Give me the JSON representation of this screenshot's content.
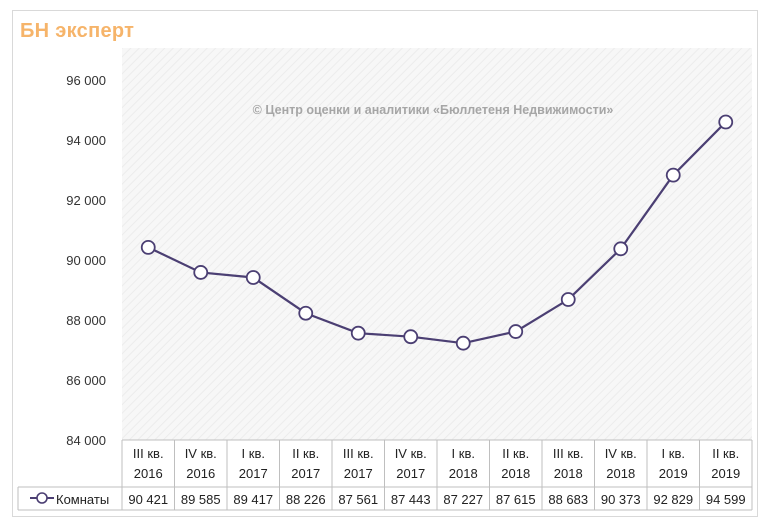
{
  "logo": "БН эксперт",
  "watermark": "© Центр оценки и аналитики «Бюллетеня Недвижимости»",
  "colors": {
    "series": "#4b3f73",
    "marker_fill": "#ffffff",
    "grid_bg": "#f4f4f4",
    "logo": "#f6b46a"
  },
  "chart_data": {
    "type": "line",
    "categories": [
      [
        "III кв.",
        "2016"
      ],
      [
        "IV кв.",
        "2016"
      ],
      [
        "I кв.",
        "2017"
      ],
      [
        "II кв.",
        "2017"
      ],
      [
        "III кв.",
        "2017"
      ],
      [
        "IV кв.",
        "2017"
      ],
      [
        "I кв.",
        "2018"
      ],
      [
        "II кв.",
        "2018"
      ],
      [
        "III кв.",
        "2018"
      ],
      [
        "IV кв.",
        "2018"
      ],
      [
        "I кв.",
        "2019"
      ],
      [
        "II кв.",
        "2019"
      ]
    ],
    "series": [
      {
        "name": "Комнаты",
        "values": [
          90421,
          89585,
          89417,
          88226,
          87561,
          87443,
          87227,
          87615,
          88683,
          90373,
          92829,
          94599
        ],
        "labels": [
          "90 421",
          "89 585",
          "89 417",
          "88 226",
          "87 561",
          "87 443",
          "87 227",
          "87 615",
          "88 683",
          "90 373",
          "92 829",
          "94 599"
        ]
      }
    ],
    "ylim": [
      84000,
      96000
    ],
    "yticks": [
      84000,
      86000,
      88000,
      90000,
      92000,
      94000,
      96000
    ],
    "ytick_labels": [
      "84 000",
      "86 000",
      "88 000",
      "90 000",
      "92 000",
      "94 000",
      "96 000"
    ],
    "grid": false,
    "legend": "data-table-left",
    "data_table": true
  }
}
